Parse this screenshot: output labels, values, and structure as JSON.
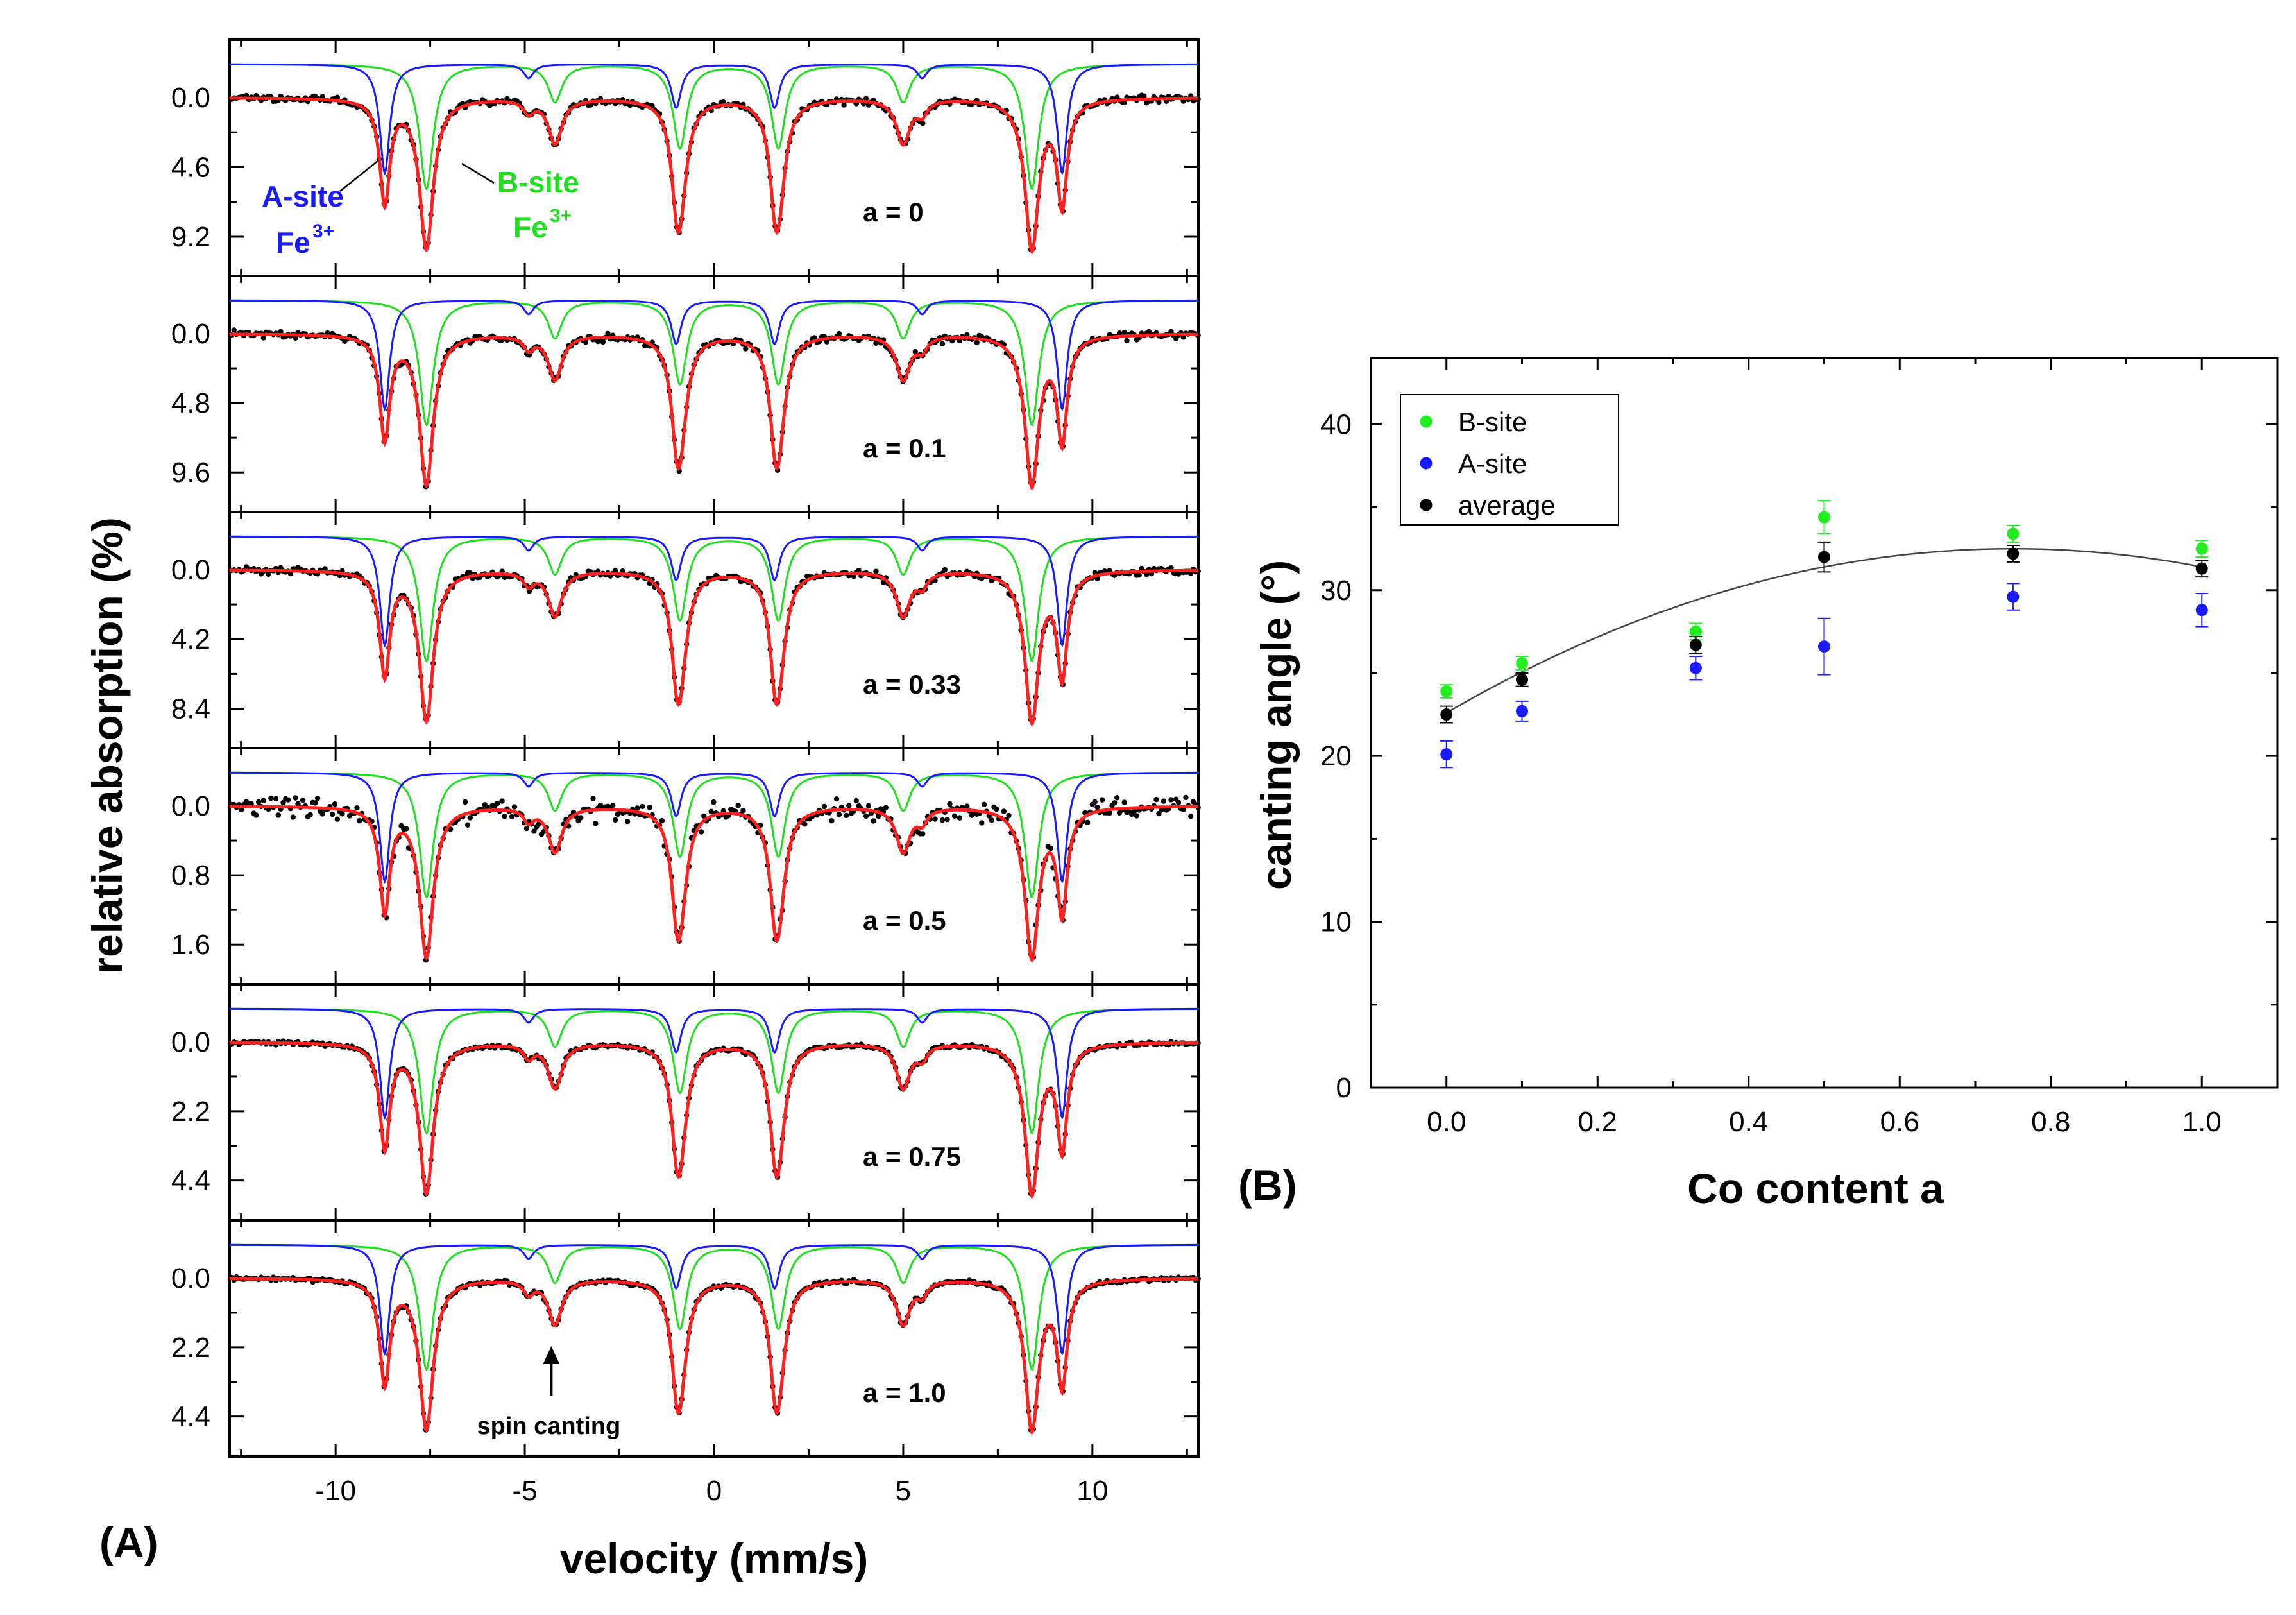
{
  "chart_data": [
    {
      "panel": "(A)",
      "type": "line",
      "xlabel": "velocity (mm/s)",
      "ylabel": "relative absorption (%)",
      "xlim": [
        -12.8,
        12.8
      ],
      "x_ticks": [
        "-10",
        "-5",
        "0",
        "5",
        "10"
      ],
      "x_tick_values": [
        -10,
        -5,
        0,
        5,
        10
      ],
      "spectra": [
        {
          "label": "a = 0",
          "y_ticks": [
            "0.0",
            "4.6",
            "9.2"
          ],
          "y_tick_values": [
            0,
            4.6,
            9.2
          ],
          "ymax": 10.6,
          "noise": 0.12
        },
        {
          "label": "a = 0.1",
          "y_ticks": [
            "0.0",
            "4.8",
            "9.6"
          ],
          "y_tick_values": [
            0,
            4.8,
            9.6
          ],
          "ymax": 11.1,
          "noise": 0.15
        },
        {
          "label": "a = 0.33",
          "y_ticks": [
            "0.0",
            "4.2",
            "8.4"
          ],
          "y_tick_values": [
            0,
            4.2,
            8.4
          ],
          "ymax": 9.7,
          "noise": 0.15
        },
        {
          "label": "a = 0.5",
          "y_ticks": [
            "0.0",
            "0.8",
            "1.6"
          ],
          "y_tick_values": [
            0,
            0.8,
            1.6
          ],
          "ymax": 1.85,
          "noise": 0.09
        },
        {
          "label": "a = 0.75",
          "y_ticks": [
            "0.0",
            "2.2",
            "4.4"
          ],
          "y_tick_values": [
            0,
            2.2,
            4.4
          ],
          "ymax": 5.1,
          "noise": 0.08
        },
        {
          "label": "a = 1.0",
          "y_ticks": [
            "0.0",
            "2.2",
            "4.4"
          ],
          "y_tick_values": [
            0,
            2.2,
            4.4
          ],
          "ymax": 5.1,
          "noise": 0.08
        }
      ],
      "a_site_lines": [
        -8.7,
        -4.9,
        -1.0,
        1.6,
        5.5,
        9.2
      ],
      "b_site_lines": [
        -7.6,
        -4.2,
        -0.9,
        1.7,
        5.0,
        8.4
      ],
      "annotations": {
        "a_site": [
          "A-site",
          "Fe",
          "3+"
        ],
        "b_site": [
          "B-site",
          "Fe",
          "3+"
        ],
        "spin_canting": "spin canting"
      },
      "colors": {
        "a_site": "#1a1aff",
        "b_site": "#22dd22",
        "fit": "#ff2020",
        "data": "#000000"
      }
    },
    {
      "panel": "(B)",
      "type": "scatter",
      "xlabel": "Co content a",
      "ylabel": "canting angle (°)",
      "xlim": [
        -0.1,
        1.1
      ],
      "ylim": [
        0,
        44
      ],
      "x_ticks": [
        "0.0",
        "0.2",
        "0.4",
        "0.6",
        "0.8",
        "1.0"
      ],
      "x_tick_values": [
        0,
        0.2,
        0.4,
        0.6,
        0.8,
        1.0
      ],
      "y_ticks": [
        "0",
        "10",
        "20",
        "30",
        "40"
      ],
      "y_tick_values": [
        0,
        10,
        20,
        30,
        40
      ],
      "x": [
        0,
        0.1,
        0.33,
        0.5,
        0.75,
        1.0
      ],
      "series": [
        {
          "name": "B-site",
          "color": "#22ee22",
          "values": [
            23.9,
            25.6,
            27.5,
            34.4,
            33.4,
            32.5
          ],
          "errors": [
            0.4,
            0.4,
            0.5,
            1.0,
            0.5,
            0.5
          ]
        },
        {
          "name": "A-site",
          "color": "#1a1aff",
          "values": [
            20.1,
            22.7,
            25.3,
            26.6,
            29.6,
            28.8
          ],
          "errors": [
            0.8,
            0.6,
            0.7,
            1.7,
            0.8,
            1.0
          ]
        },
        {
          "name": "average",
          "color": "#000000",
          "values": [
            22.5,
            24.6,
            26.7,
            32.0,
            32.2,
            31.3
          ],
          "errors": [
            0.5,
            0.4,
            0.5,
            0.9,
            0.5,
            0.5
          ]
        }
      ],
      "fit_curve": {
        "type": "quadratic",
        "coefficients": [
          22.6,
          26.4,
          -17.6
        ]
      },
      "legend_position": "top-left"
    }
  ]
}
